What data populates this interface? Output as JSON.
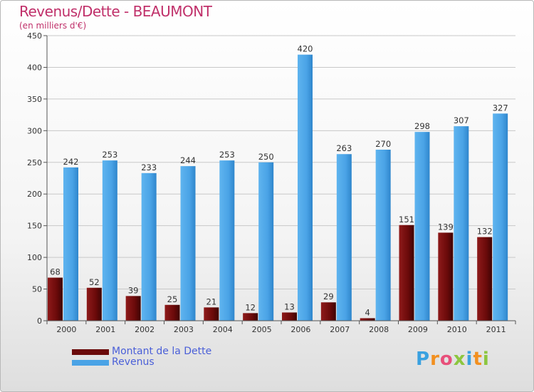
{
  "chart_data": {
    "type": "bar",
    "title": "Revenus/Dette - BEAUMONT",
    "subtitle": "(en milliers d'€)",
    "xlabel": "",
    "ylabel": "",
    "ylim": [
      0,
      450
    ],
    "yticks": [
      0,
      50,
      100,
      150,
      200,
      250,
      300,
      350,
      400,
      450
    ],
    "grid": true,
    "legend_position": "bottom-left",
    "categories": [
      "2000",
      "2001",
      "2002",
      "2003",
      "2004",
      "2005",
      "2006",
      "2007",
      "2008",
      "2009",
      "2010",
      "2011"
    ],
    "series": [
      {
        "name": "Montant de la Dette",
        "color": "#6b0a0a",
        "label_color": "#5a1414",
        "values": [
          68,
          52,
          39,
          25,
          21,
          12,
          13,
          29,
          4,
          151,
          139,
          132
        ]
      },
      {
        "name": "Revenus",
        "color": "#4aa3e6",
        "label_color": "#4a7fd0",
        "values": [
          242,
          253,
          233,
          244,
          253,
          250,
          420,
          263,
          270,
          298,
          307,
          327
        ]
      }
    ]
  },
  "logo": {
    "letters": [
      "P",
      "r",
      "o",
      "x",
      "i",
      "t",
      "i"
    ],
    "colors": [
      "#3aa1e0",
      "#f29020",
      "#e84f7a",
      "#8cc63f",
      "#3aa1e0",
      "#f29020",
      "#8cc63f"
    ]
  }
}
